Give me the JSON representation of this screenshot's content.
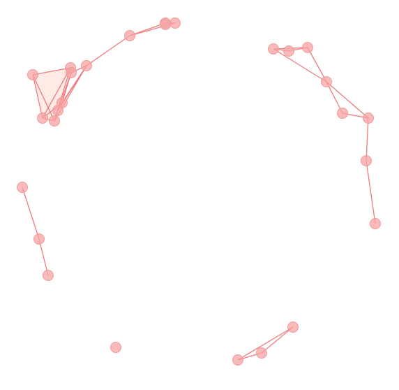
{
  "graph": {
    "colors": {
      "edge": "#ee7b80",
      "node": "#f6a3a3",
      "face": "#ffd9cf",
      "background": "#ffffff"
    },
    "nodes": [
      {
        "id": "n1"
      },
      {
        "id": "n2"
      },
      {
        "id": "n3"
      },
      {
        "id": "n4"
      },
      {
        "id": "n5"
      },
      {
        "id": "n6"
      },
      {
        "id": "n7"
      },
      {
        "id": "n8"
      },
      {
        "id": "n9"
      },
      {
        "id": "n10"
      },
      {
        "id": "n11"
      },
      {
        "id": "n12"
      },
      {
        "id": "n13"
      },
      {
        "id": "n14"
      },
      {
        "id": "n15"
      },
      {
        "id": "n16"
      },
      {
        "id": "n17"
      },
      {
        "id": "n18"
      },
      {
        "id": "n19"
      },
      {
        "id": "n20"
      },
      {
        "id": "n21"
      },
      {
        "id": "n22"
      },
      {
        "id": "n23"
      },
      {
        "id": "n24"
      },
      {
        "id": "n25"
      },
      {
        "id": "n26"
      },
      {
        "id": "n27"
      }
    ],
    "edges": [
      [
        "n1",
        "n2"
      ],
      [
        "n1",
        "n3"
      ],
      [
        "n1",
        "n4"
      ],
      [
        "n2",
        "n3"
      ],
      [
        "n2",
        "n4"
      ],
      [
        "n3",
        "n4"
      ],
      [
        "n5",
        "n6"
      ],
      [
        "n5",
        "n7"
      ],
      [
        "n5",
        "n8"
      ],
      [
        "n6",
        "n7"
      ],
      [
        "n6",
        "n8"
      ],
      [
        "n7",
        "n8"
      ],
      [
        "n5",
        "n4"
      ],
      [
        "n3",
        "n6"
      ],
      [
        "n5",
        "n9"
      ],
      [
        "n9",
        "n10"
      ],
      [
        "n9",
        "n11"
      ],
      [
        "n10",
        "n11"
      ],
      [
        "n12",
        "n13"
      ],
      [
        "n12",
        "n14"
      ],
      [
        "n13",
        "n14"
      ],
      [
        "n12",
        "n15"
      ],
      [
        "n14",
        "n15"
      ],
      [
        "n15",
        "n16"
      ],
      [
        "n16",
        "n17"
      ],
      [
        "n15",
        "n17"
      ],
      [
        "n17",
        "n18"
      ],
      [
        "n18",
        "n19"
      ],
      [
        "n20",
        "n21"
      ],
      [
        "n21",
        "n22"
      ],
      [
        "n23",
        "n24"
      ],
      [
        "n23",
        "n25"
      ],
      [
        "n24",
        "n25"
      ]
    ],
    "faces": [
      [
        "n1",
        "n2",
        "n4"
      ],
      [
        "n1",
        "n4",
        "n3"
      ],
      [
        "n5",
        "n6",
        "n8"
      ],
      [
        "n12",
        "n13",
        "n14"
      ]
    ]
  }
}
